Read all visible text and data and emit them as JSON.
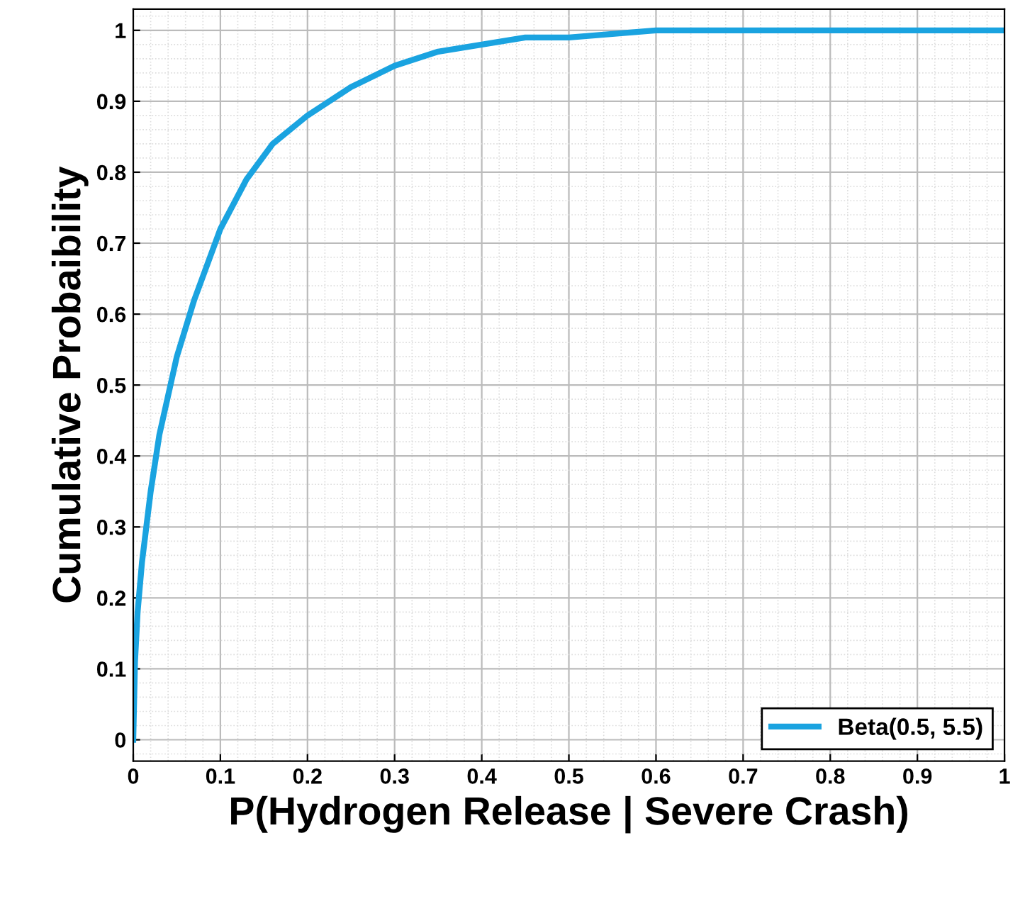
{
  "chart_data": {
    "type": "line",
    "xlabel": "P(Hydrogen Release | Severe Crash)",
    "ylabel": "Cumulative Probaibility",
    "x": [
      0,
      0.002,
      0.005,
      0.01,
      0.02,
      0.03,
      0.05,
      0.07,
      0.1,
      0.13,
      0.16,
      0.2,
      0.25,
      0.3,
      0.35,
      0.4,
      0.45,
      0.5,
      0.6,
      0.7,
      0.8,
      0.9,
      1.0
    ],
    "series": [
      {
        "name": "Beta(0.5, 5.5)",
        "color": "#1aa3e0",
        "values": [
          0,
          0.11,
          0.18,
          0.25,
          0.35,
          0.43,
          0.54,
          0.62,
          0.72,
          0.79,
          0.84,
          0.88,
          0.92,
          0.95,
          0.97,
          0.98,
          0.99,
          0.99,
          1,
          1,
          1,
          1,
          1
        ]
      }
    ],
    "xlim": [
      0,
      1
    ],
    "ylim": [
      -0.03,
      1.03
    ],
    "xticks": [
      0,
      0.1,
      0.2,
      0.3,
      0.4,
      0.5,
      0.6,
      0.7,
      0.8,
      0.9,
      1
    ],
    "yticks": [
      0,
      0.1,
      0.2,
      0.3,
      0.4,
      0.5,
      0.6,
      0.7,
      0.8,
      0.9,
      1
    ],
    "grid": true,
    "legend": "bottom right",
    "line_style": "solid",
    "marker": "none"
  }
}
